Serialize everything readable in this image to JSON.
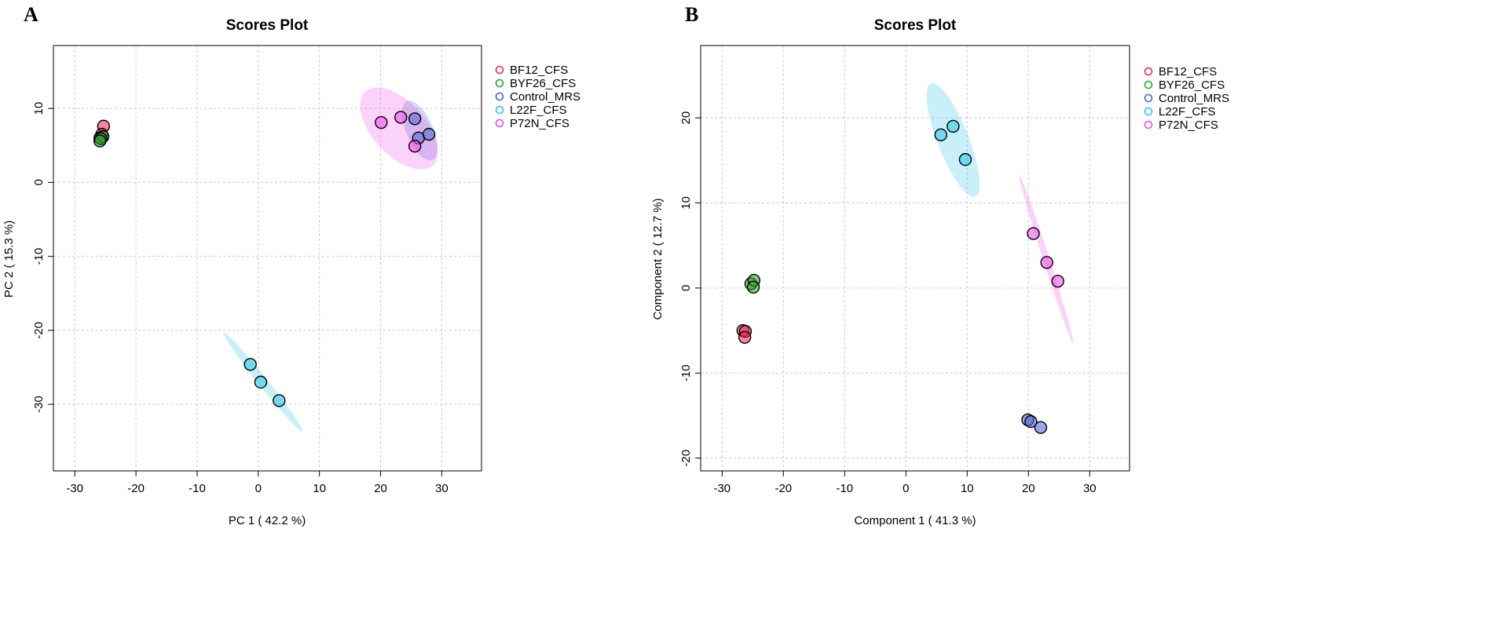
{
  "chart_data": [
    {
      "type": "scatter",
      "panel_label": "A",
      "title": "Scores Plot",
      "xlabel": "PC 1 ( 42.2 %)",
      "ylabel": "PC 2 ( 15.3 %)",
      "xlim": [
        -33.5,
        36.5
      ],
      "ylim": [
        -39,
        18.5
      ],
      "xticks": [
        -30,
        -20,
        -10,
        0,
        10,
        20,
        30
      ],
      "yticks": [
        -30,
        -20,
        -10,
        0,
        10
      ],
      "grid": true,
      "legend_position": "top-right",
      "series": [
        {
          "name": "BF12_CFS",
          "color": "#e8274f",
          "x": [
            -25.3,
            -25.6,
            -25.9
          ],
          "y": [
            7.6,
            6.5,
            6.0
          ],
          "ellipse": null
        },
        {
          "name": "BYF26_CFS",
          "color": "#2ca02c",
          "x": [
            -25.4,
            -25.7,
            -25.9
          ],
          "y": [
            6.2,
            5.9,
            5.6
          ],
          "ellipse": null
        },
        {
          "name": "Control_MRS",
          "color": "#4b61d1",
          "x": [
            25.6,
            26.2,
            27.9
          ],
          "y": [
            8.6,
            6.0,
            6.5
          ],
          "ellipse": {
            "cx": 26.4,
            "cy": 7.0,
            "rx": 4.5,
            "ry": 2.1,
            "angle": -60
          }
        },
        {
          "name": "L22F_CFS",
          "color": "#29c5e6",
          "x": [
            -1.3,
            0.4,
            3.4
          ],
          "y": [
            -24.6,
            -27.0,
            -29.5
          ],
          "ellipse": {
            "cx": 0.8,
            "cy": -27.0,
            "rx": 9.3,
            "ry": 0.7,
            "angle": -46
          }
        },
        {
          "name": "P72N_CFS",
          "color": "#ee4be6",
          "x": [
            20.1,
            23.3,
            25.6
          ],
          "y": [
            8.1,
            8.8,
            4.9
          ],
          "ellipse": {
            "cx": 23.0,
            "cy": 7.3,
            "rx": 7.5,
            "ry": 3.9,
            "angle": -38
          }
        }
      ]
    },
    {
      "type": "scatter",
      "panel_label": "B",
      "title": "Scores Plot",
      "xlabel": "Component 1 ( 41.3 %)",
      "ylabel": "Component 2 ( 12.7 %)",
      "xlim": [
        -33.5,
        36.5
      ],
      "ylim": [
        -21.5,
        28.5
      ],
      "xticks": [
        -30,
        -20,
        -10,
        0,
        10,
        20,
        30
      ],
      "yticks": [
        -20,
        -10,
        0,
        10,
        20
      ],
      "grid": true,
      "legend_position": "top-right",
      "series": [
        {
          "name": "BF12_CFS",
          "color": "#e8274f",
          "x": [
            -26.6,
            -26.2,
            -26.3
          ],
          "y": [
            -5.0,
            -5.1,
            -5.8
          ],
          "ellipse": null
        },
        {
          "name": "BYF26_CFS",
          "color": "#2ca02c",
          "x": [
            -25.3,
            -24.8,
            -24.9
          ],
          "y": [
            0.5,
            0.9,
            0.1
          ],
          "ellipse": null
        },
        {
          "name": "Control_MRS",
          "color": "#4b61d1",
          "x": [
            19.9,
            20.4,
            22.0
          ],
          "y": [
            -15.5,
            -15.7,
            -16.4
          ],
          "ellipse": null
        },
        {
          "name": "L22F_CFS",
          "color": "#29c5e6",
          "x": [
            5.7,
            7.7,
            9.7
          ],
          "y": [
            18.0,
            19.0,
            15.1
          ],
          "ellipse": {
            "cx": 7.7,
            "cy": 17.4,
            "rx": 7.6,
            "ry": 2.4,
            "angle": -60
          }
        },
        {
          "name": "P72N_CFS",
          "color": "#ee4be6",
          "x": [
            20.8,
            23.0,
            24.8
          ],
          "y": [
            6.4,
            3.0,
            0.8
          ],
          "ellipse": {
            "cx": 22.9,
            "cy": 3.4,
            "rx": 10.8,
            "ry": 0.5,
            "angle": -66
          }
        }
      ]
    }
  ]
}
